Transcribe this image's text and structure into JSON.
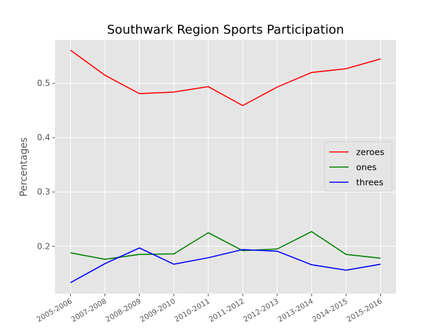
{
  "chart_data": {
    "type": "line",
    "title": "Southwark Region Sports Participation",
    "xlabel": "",
    "ylabel": "Percentages",
    "categories": [
      "2005-2006",
      "2007-2008",
      "2008-2009",
      "2009-2010",
      "2010-2011",
      "2011-2012",
      "2012-2013",
      "2013-2014",
      "2014-2015",
      "2015-2016"
    ],
    "y_ticks": [
      "0.2",
      "0.3",
      "0.4",
      "0.5"
    ],
    "ylim": [
      0.113,
      0.58
    ],
    "grid": true,
    "legend_position": "center-right",
    "series": [
      {
        "name": "zeroes",
        "color": "#ff0000",
        "values": [
          0.561,
          0.515,
          0.481,
          0.484,
          0.494,
          0.459,
          0.493,
          0.52,
          0.527,
          0.545
        ]
      },
      {
        "name": "ones",
        "color": "#008000",
        "values": [
          0.188,
          0.176,
          0.185,
          0.186,
          0.225,
          0.192,
          0.195,
          0.227,
          0.185,
          0.178
        ]
      },
      {
        "name": "threes",
        "color": "#0000ff",
        "values": [
          0.133,
          0.168,
          0.197,
          0.167,
          0.179,
          0.194,
          0.191,
          0.166,
          0.156,
          0.167
        ]
      }
    ]
  }
}
